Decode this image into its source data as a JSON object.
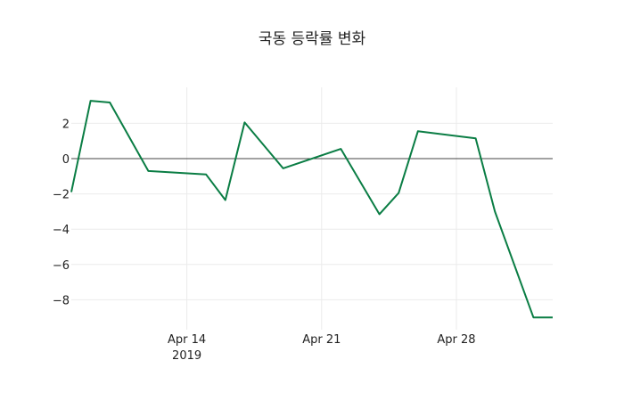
{
  "chart_data": {
    "type": "line",
    "title": "국동 등락률 변화",
    "xlabel": "",
    "ylabel": "",
    "x": [
      "2019-04-08",
      "2019-04-09",
      "2019-04-10",
      "2019-04-12",
      "2019-04-15",
      "2019-04-16",
      "2019-04-17",
      "2019-04-19",
      "2019-04-22",
      "2019-04-24",
      "2019-04-25",
      "2019-04-26",
      "2019-04-29",
      "2019-04-30",
      "2019-05-02",
      "2019-05-03"
    ],
    "series": [
      {
        "name": "등락률",
        "color": "#0a7d44",
        "values": [
          -1.9,
          3.28,
          3.18,
          -0.7,
          -0.9,
          -2.35,
          2.05,
          -0.55,
          0.55,
          -3.15,
          -1.95,
          1.55,
          1.15,
          -3.0,
          -9.0,
          -9.0
        ]
      }
    ],
    "x_ticks": [
      {
        "date": "2019-04-14",
        "label": "Apr 14",
        "sublabel": "2019"
      },
      {
        "date": "2019-04-21",
        "label": "Apr 21",
        "sublabel": ""
      },
      {
        "date": "2019-04-28",
        "label": "Apr 28",
        "sublabel": ""
      }
    ],
    "y_ticks": [
      2,
      0,
      -2,
      -4,
      -6,
      -8
    ],
    "y_tick_labels": [
      "2",
      "0",
      "−2",
      "−4",
      "−6",
      "−8"
    ],
    "xlim": [
      "2019-04-08",
      "2019-05-03"
    ],
    "ylim": [
      -9.6,
      4.0
    ],
    "grid": true,
    "zero_line": true,
    "legend": "none"
  }
}
